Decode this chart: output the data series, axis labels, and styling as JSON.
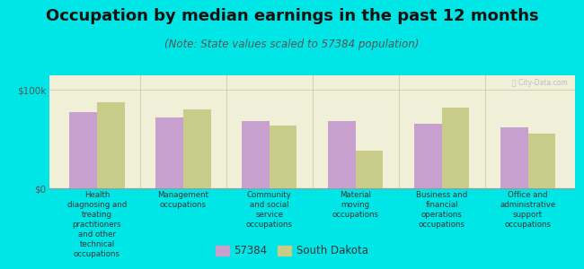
{
  "title": "Occupation by median earnings in the past 12 months",
  "subtitle": "(Note: State values scaled to 57384 population)",
  "background_color": "#00e5e5",
  "plot_bg_color": "#f0f0d8",
  "categories": [
    "Health\ndiagnosing and\ntreating\npractitioners\nand other\ntechnical\noccupations",
    "Management\noccupations",
    "Community\nand social\nservice\noccupations",
    "Material\nmoving\noccupations",
    "Business and\nfinancial\noperations\noccupations",
    "Office and\nadministrative\nsupport\noccupations"
  ],
  "values_57384": [
    78000,
    72000,
    68000,
    68000,
    66000,
    62000
  ],
  "values_sd": [
    88000,
    80000,
    64000,
    38000,
    82000,
    56000
  ],
  "color_57384": "#c8a0d0",
  "color_sd": "#c8cc88",
  "ytick_labels": [
    "$0",
    "$100k"
  ],
  "yticks": [
    0,
    100000
  ],
  "ylim_max": 115000,
  "legend_57384": "57384",
  "legend_sd": "South Dakota",
  "bar_width": 0.32,
  "title_fontsize": 13,
  "subtitle_fontsize": 8.5,
  "tick_fontsize": 7.5,
  "label_fontsize": 6.2,
  "legend_fontsize": 8.5
}
